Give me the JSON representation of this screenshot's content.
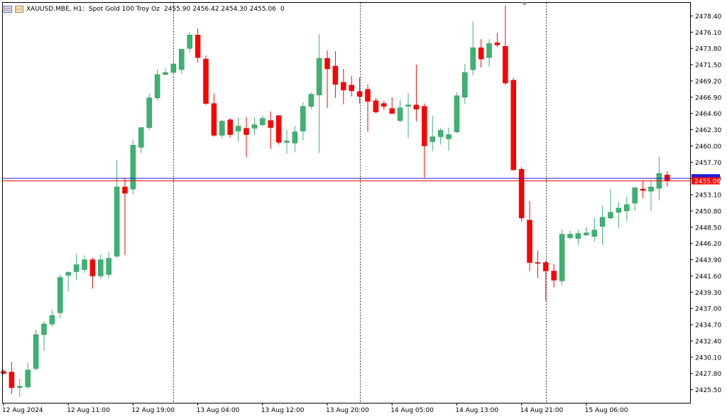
{
  "header": {
    "symbol_timeframe": "XAUUSD.MBE, H1:",
    "description": "Spot Gold 100 Troy Oz",
    "open": "2455.90",
    "high": "2456.42",
    "low": "2454.30",
    "close": "2455.06",
    "volume": "0"
  },
  "colors": {
    "bull": "#3cb371",
    "bear": "#ff0000",
    "bull_wick": "#3cb371",
    "bear_wick": "#ff0000",
    "grid_separator": "#000000",
    "border": "#000000",
    "ask_line": "#1c1cdc",
    "bid_line": "#ff0000",
    "bid_label_bg": "#ff0000",
    "ask_label_bg": "#1c1cdc",
    "text": "#000000"
  },
  "chart_data": {
    "type": "candlestick",
    "ylim": [
      2423.6,
      2480.3
    ],
    "y_ticks": [
      "2478.40",
      "2476.10",
      "2473.80",
      "2471.50",
      "2469.20",
      "2466.90",
      "2464.60",
      "2462.30",
      "2460.00",
      "2457.70",
      "2455.40",
      "2453.10",
      "2450.80",
      "2448.50",
      "2446.20",
      "2443.90",
      "2441.60",
      "2439.30",
      "2437.00",
      "2434.70",
      "2432.40",
      "2430.10",
      "2427.80",
      "2425.50"
    ],
    "x_labels": [
      "12 Aug 2024",
      "12 Aug 11:00",
      "12 Aug 19:00",
      "13 Aug 04:00",
      "13 Aug 12:00",
      "13 Aug 20:00",
      "14 Aug 05:00",
      "14 Aug 13:00",
      "14 Aug 21:00",
      "15 Aug 06:00"
    ],
    "x_label_candle_index": [
      0,
      8,
      16,
      24,
      32,
      40,
      48,
      56,
      64,
      72
    ],
    "day_separator_candle_index": [
      21,
      44,
      67
    ],
    "ask_price": 2455.4,
    "bid_price": 2455.06,
    "bid_label": "2455.06",
    "candles": [
      {
        "o": 2428.1,
        "h": 2428.4,
        "l": 2427.6,
        "c": 2427.8
      },
      {
        "o": 2428.0,
        "h": 2429.4,
        "l": 2424.9,
        "c": 2425.8
      },
      {
        "o": 2425.8,
        "h": 2427.0,
        "l": 2424.5,
        "c": 2426.0
      },
      {
        "o": 2425.9,
        "h": 2429.3,
        "l": 2425.6,
        "c": 2428.3
      },
      {
        "o": 2428.5,
        "h": 2434.0,
        "l": 2428.2,
        "c": 2433.3
      },
      {
        "o": 2433.3,
        "h": 2435.2,
        "l": 2431.0,
        "c": 2434.8
      },
      {
        "o": 2434.8,
        "h": 2436.8,
        "l": 2434.4,
        "c": 2436.0
      },
      {
        "o": 2436.4,
        "h": 2441.8,
        "l": 2435.6,
        "c": 2441.4
      },
      {
        "o": 2441.7,
        "h": 2442.3,
        "l": 2439.4,
        "c": 2442.1
      },
      {
        "o": 2442.2,
        "h": 2444.7,
        "l": 2441.0,
        "c": 2443.2
      },
      {
        "o": 2442.5,
        "h": 2444.5,
        "l": 2442.0,
        "c": 2443.9
      },
      {
        "o": 2443.9,
        "h": 2444.2,
        "l": 2439.8,
        "c": 2441.6
      },
      {
        "o": 2441.6,
        "h": 2444.6,
        "l": 2441.2,
        "c": 2443.9
      },
      {
        "o": 2441.8,
        "h": 2445.0,
        "l": 2441.3,
        "c": 2444.1
      },
      {
        "o": 2444.4,
        "h": 2458.0,
        "l": 2444.2,
        "c": 2454.2
      },
      {
        "o": 2454.2,
        "h": 2455.5,
        "l": 2444.6,
        "c": 2453.3
      },
      {
        "o": 2453.9,
        "h": 2460.9,
        "l": 2453.2,
        "c": 2460.1
      },
      {
        "o": 2459.8,
        "h": 2462.5,
        "l": 2459.0,
        "c": 2462.6
      },
      {
        "o": 2462.6,
        "h": 2467.4,
        "l": 2462.2,
        "c": 2466.8
      },
      {
        "o": 2466.8,
        "h": 2470.8,
        "l": 2466.5,
        "c": 2470.1
      },
      {
        "o": 2470.1,
        "h": 2471.0,
        "l": 2470.0,
        "c": 2470.4
      },
      {
        "o": 2470.4,
        "h": 2472.1,
        "l": 2470.0,
        "c": 2471.6
      },
      {
        "o": 2470.8,
        "h": 2473.5,
        "l": 2470.2,
        "c": 2473.7
      },
      {
        "o": 2473.8,
        "h": 2476.1,
        "l": 2473.2,
        "c": 2475.7
      },
      {
        "o": 2475.7,
        "h": 2476.6,
        "l": 2471.8,
        "c": 2472.5
      },
      {
        "o": 2472.3,
        "h": 2472.8,
        "l": 2465.8,
        "c": 2466.0
      },
      {
        "o": 2466.0,
        "h": 2467.4,
        "l": 2461.3,
        "c": 2461.5
      },
      {
        "o": 2461.5,
        "h": 2463.7,
        "l": 2461.0,
        "c": 2463.5
      },
      {
        "o": 2463.7,
        "h": 2463.9,
        "l": 2461.2,
        "c": 2461.6
      },
      {
        "o": 2462.1,
        "h": 2464.0,
        "l": 2460.6,
        "c": 2462.8
      },
      {
        "o": 2462.5,
        "h": 2464.1,
        "l": 2458.4,
        "c": 2461.6
      },
      {
        "o": 2462.5,
        "h": 2464.0,
        "l": 2461.6,
        "c": 2463.0
      },
      {
        "o": 2463.0,
        "h": 2464.3,
        "l": 2462.8,
        "c": 2463.9
      },
      {
        "o": 2463.6,
        "h": 2464.9,
        "l": 2459.6,
        "c": 2462.6
      },
      {
        "o": 2464.3,
        "h": 2464.3,
        "l": 2460.2,
        "c": 2460.5
      },
      {
        "o": 2460.5,
        "h": 2462.3,
        "l": 2458.9,
        "c": 2460.7
      },
      {
        "o": 2460.4,
        "h": 2462.8,
        "l": 2459.1,
        "c": 2462.0
      },
      {
        "o": 2462.1,
        "h": 2466.2,
        "l": 2460.8,
        "c": 2465.6
      },
      {
        "o": 2465.6,
        "h": 2467.6,
        "l": 2465.2,
        "c": 2467.3
      },
      {
        "o": 2467.2,
        "h": 2475.8,
        "l": 2459.0,
        "c": 2472.4
      },
      {
        "o": 2472.4,
        "h": 2473.5,
        "l": 2465.4,
        "c": 2470.9
      },
      {
        "o": 2471.3,
        "h": 2473.4,
        "l": 2466.8,
        "c": 2468.7
      },
      {
        "o": 2469.0,
        "h": 2470.9,
        "l": 2465.9,
        "c": 2467.9
      },
      {
        "o": 2468.6,
        "h": 2469.9,
        "l": 2467.0,
        "c": 2467.8
      },
      {
        "o": 2467.7,
        "h": 2469.7,
        "l": 2466.0,
        "c": 2467.0
      },
      {
        "o": 2468.0,
        "h": 2468.7,
        "l": 2462.0,
        "c": 2466.3
      },
      {
        "o": 2466.4,
        "h": 2466.8,
        "l": 2464.6,
        "c": 2464.8
      },
      {
        "o": 2466.0,
        "h": 2466.4,
        "l": 2465.1,
        "c": 2465.6
      },
      {
        "o": 2465.3,
        "h": 2466.9,
        "l": 2464.5,
        "c": 2464.6
      },
      {
        "o": 2463.6,
        "h": 2466.5,
        "l": 2463.3,
        "c": 2465.4
      },
      {
        "o": 2465.6,
        "h": 2467.5,
        "l": 2461.1,
        "c": 2465.8
      },
      {
        "o": 2465.8,
        "h": 2471.5,
        "l": 2463.5,
        "c": 2465.2
      },
      {
        "o": 2465.6,
        "h": 2466.0,
        "l": 2455.5,
        "c": 2460.0
      },
      {
        "o": 2460.6,
        "h": 2464.3,
        "l": 2459.3,
        "c": 2461.3
      },
      {
        "o": 2461.3,
        "h": 2462.5,
        "l": 2460.2,
        "c": 2462.2
      },
      {
        "o": 2461.0,
        "h": 2462.6,
        "l": 2459.3,
        "c": 2461.6
      },
      {
        "o": 2462.0,
        "h": 2467.6,
        "l": 2461.8,
        "c": 2467.1
      },
      {
        "o": 2466.9,
        "h": 2471.6,
        "l": 2465.9,
        "c": 2470.4
      },
      {
        "o": 2470.8,
        "h": 2477.6,
        "l": 2470.0,
        "c": 2473.9
      },
      {
        "o": 2473.9,
        "h": 2475.1,
        "l": 2471.1,
        "c": 2472.3
      },
      {
        "o": 2472.5,
        "h": 2475.1,
        "l": 2471.2,
        "c": 2474.5
      },
      {
        "o": 2474.6,
        "h": 2476.0,
        "l": 2474.0,
        "c": 2474.3
      },
      {
        "o": 2474.1,
        "h": 2479.9,
        "l": 2468.6,
        "c": 2468.9
      },
      {
        "o": 2469.3,
        "h": 2469.6,
        "l": 2456.6,
        "c": 2456.6
      },
      {
        "o": 2456.7,
        "h": 2457.0,
        "l": 2449.3,
        "c": 2449.8
      },
      {
        "o": 2449.5,
        "h": 2452.2,
        "l": 2442.3,
        "c": 2443.5
      },
      {
        "o": 2443.5,
        "h": 2445.2,
        "l": 2441.3,
        "c": 2443.4
      },
      {
        "o": 2443.5,
        "h": 2443.8,
        "l": 2438.1,
        "c": 2442.3
      },
      {
        "o": 2442.3,
        "h": 2443.3,
        "l": 2440.0,
        "c": 2441.0
      },
      {
        "o": 2440.9,
        "h": 2448.2,
        "l": 2440.3,
        "c": 2447.5
      },
      {
        "o": 2447.0,
        "h": 2448.0,
        "l": 2446.8,
        "c": 2447.5
      },
      {
        "o": 2446.9,
        "h": 2448.1,
        "l": 2446.0,
        "c": 2447.6
      },
      {
        "o": 2447.4,
        "h": 2448.5,
        "l": 2447.2,
        "c": 2447.7
      },
      {
        "o": 2447.2,
        "h": 2449.8,
        "l": 2446.5,
        "c": 2448.1
      },
      {
        "o": 2448.6,
        "h": 2451.5,
        "l": 2446.0,
        "c": 2449.9
      },
      {
        "o": 2449.8,
        "h": 2453.9,
        "l": 2449.6,
        "c": 2450.6
      },
      {
        "o": 2450.6,
        "h": 2452.1,
        "l": 2448.4,
        "c": 2451.2
      },
      {
        "o": 2450.8,
        "h": 2452.8,
        "l": 2449.4,
        "c": 2451.7
      },
      {
        "o": 2451.9,
        "h": 2454.0,
        "l": 2450.8,
        "c": 2454.1
      },
      {
        "o": 2453.9,
        "h": 2455.0,
        "l": 2452.6,
        "c": 2453.7
      },
      {
        "o": 2453.6,
        "h": 2455.1,
        "l": 2450.8,
        "c": 2454.2
      },
      {
        "o": 2454.0,
        "h": 2458.5,
        "l": 2452.3,
        "c": 2456.1
      },
      {
        "o": 2455.9,
        "h": 2456.4,
        "l": 2454.3,
        "c": 2455.06
      }
    ]
  }
}
